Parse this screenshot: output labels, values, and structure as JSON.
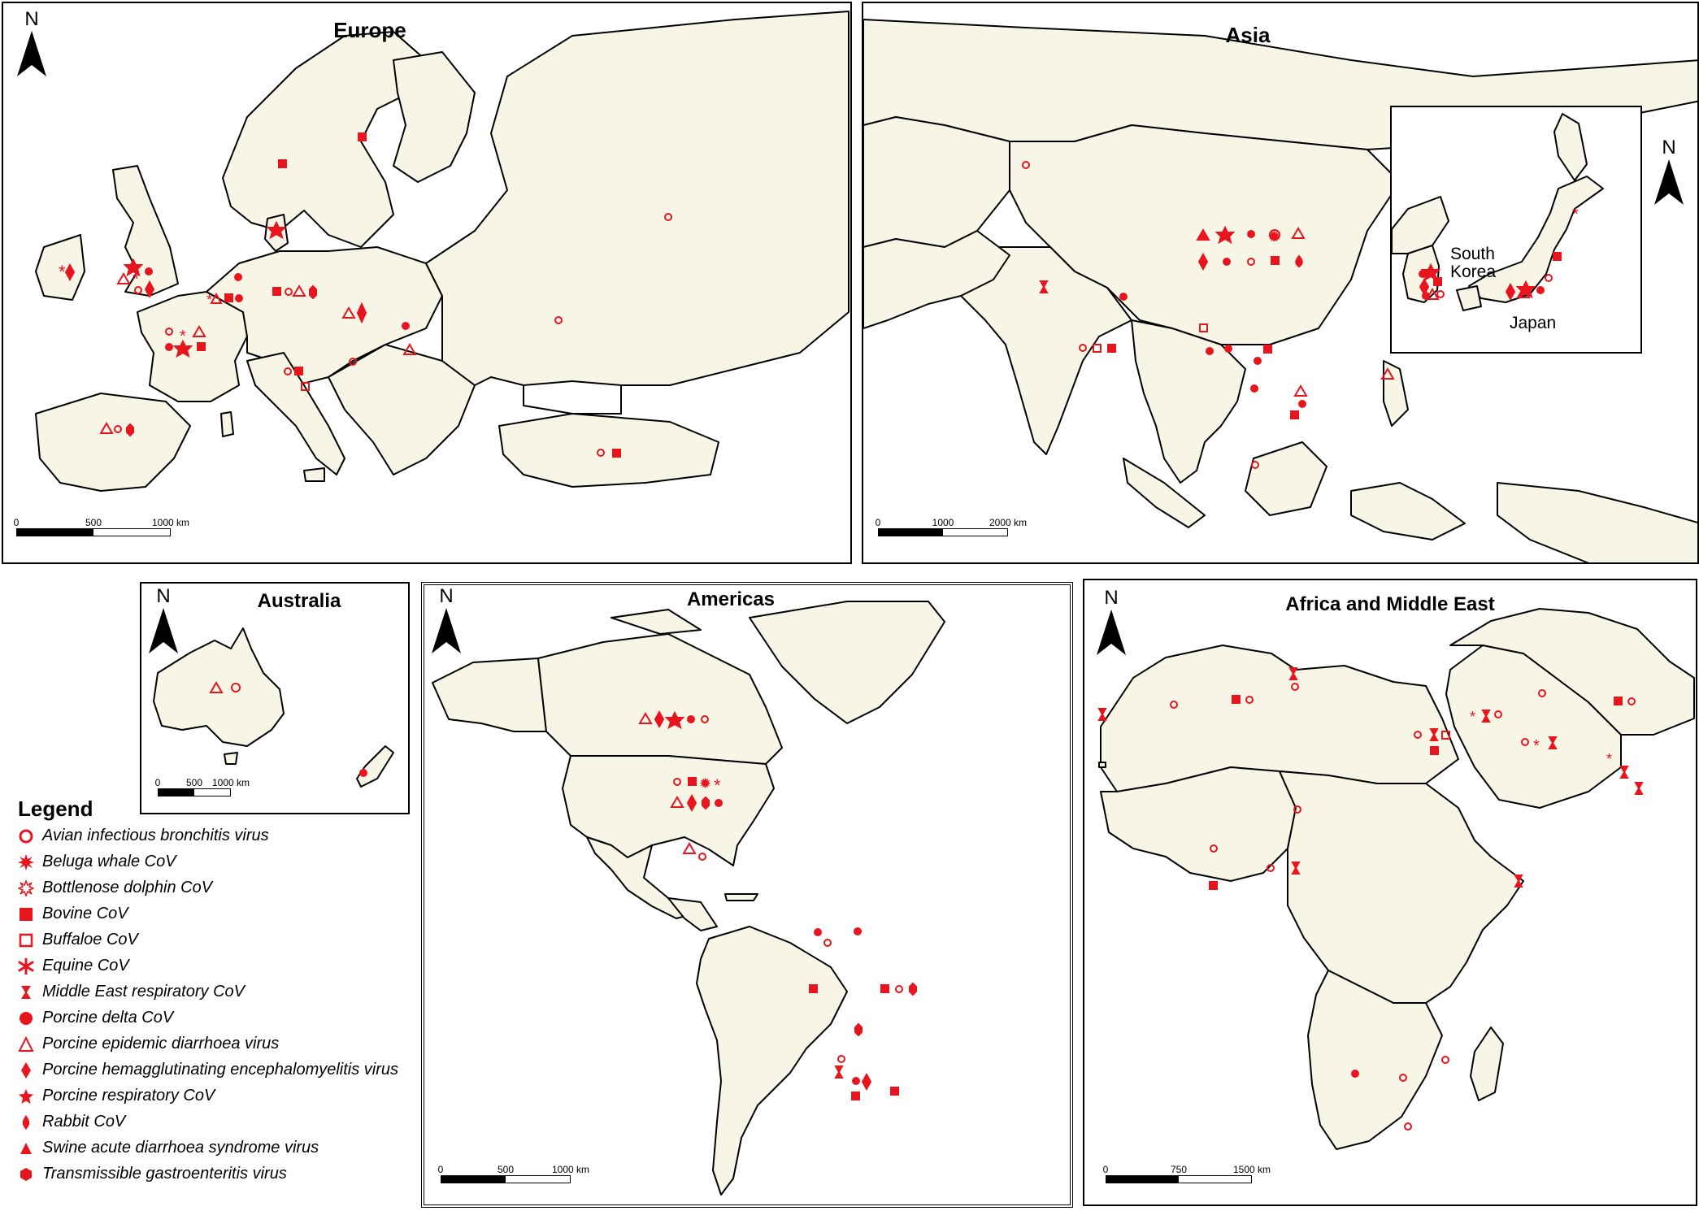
{
  "panels": {
    "europe": {
      "title": "Europe",
      "north": "N",
      "scale": [
        "0",
        "500",
        "1000 km"
      ]
    },
    "asia": {
      "title": "Asia",
      "north": "N",
      "scale": [
        "0",
        "1000",
        "2000 km"
      ],
      "inset": {
        "north": "N",
        "labels": [
          "South Korea",
          "Japan"
        ]
      }
    },
    "australia": {
      "title": "Australia",
      "north": "N",
      "scale": [
        "0",
        "500",
        "1000 km"
      ]
    },
    "americas": {
      "title": "Americas",
      "north": "N",
      "scale": [
        "0",
        "500",
        "1000 km"
      ]
    },
    "africa": {
      "title": "Africa and Middle East",
      "north": "N",
      "scale": [
        "0",
        "750",
        "1500 km"
      ]
    }
  },
  "legend": {
    "title": "Legend",
    "items": [
      {
        "label": "Avian infectious bronchitis virus",
        "symbol": "circle-open"
      },
      {
        "label": "Beluga whale CoV",
        "symbol": "burst"
      },
      {
        "label": "Bottlenose dolphin CoV",
        "symbol": "burst-open"
      },
      {
        "label": "Bovine CoV",
        "symbol": "square"
      },
      {
        "label": "Buffaloe CoV",
        "symbol": "square-open"
      },
      {
        "label": "Equine CoV",
        "symbol": "asterisk"
      },
      {
        "label": "Middle East respiratory CoV",
        "symbol": "hourglass"
      },
      {
        "label": "Porcine delta CoV",
        "symbol": "circle"
      },
      {
        "label": "Porcine epidemic diarrhoea virus",
        "symbol": "triangle-open"
      },
      {
        "label": "Porcine hemagglutinating encephalomyelitis virus",
        "symbol": "diamond"
      },
      {
        "label": "Porcine respiratory CoV",
        "symbol": "star"
      },
      {
        "label": "Rabbit CoV",
        "symbol": "drop"
      },
      {
        "label": "Swine acute diarrhoea syndrome virus",
        "symbol": "triangle"
      },
      {
        "label": "Transmissible gastroenteritis virus",
        "symbol": "hexagon"
      }
    ]
  },
  "colors": {
    "land": "#f7f6e6",
    "symbol": "#e8141e",
    "border": "#000000"
  }
}
